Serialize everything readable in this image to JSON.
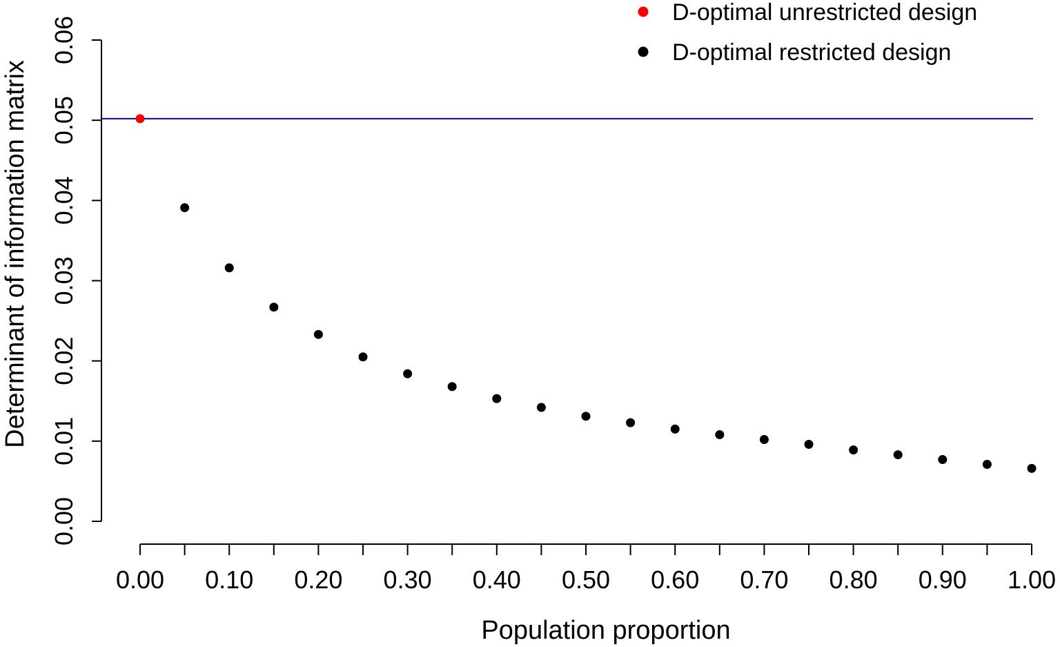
{
  "chart_data": {
    "type": "scatter",
    "xlabel": "Population proportion",
    "ylabel": "Determinant of information matrix",
    "xlim": [
      0,
      1
    ],
    "ylim": [
      0,
      0.06
    ],
    "x_ticks": [
      0,
      0.05,
      0.1,
      0.15,
      0.2,
      0.25,
      0.3,
      0.35,
      0.4,
      0.45,
      0.5,
      0.55,
      0.6,
      0.65,
      0.7,
      0.75,
      0.8,
      0.85,
      0.9,
      0.95,
      1.0
    ],
    "x_tick_labels": [
      "0.00",
      "0.10",
      "0.20",
      "0.30",
      "0.40",
      "0.50",
      "0.60",
      "0.70",
      "0.80",
      "0.90",
      "1.00"
    ],
    "x_tick_label_values": [
      0,
      0.1,
      0.2,
      0.3,
      0.4,
      0.5,
      0.6,
      0.7,
      0.8,
      0.9,
      1.0
    ],
    "y_ticks": [
      0,
      0.01,
      0.02,
      0.03,
      0.04,
      0.05,
      0.06
    ],
    "y_tick_labels": [
      "0.00",
      "0.01",
      "0.02",
      "0.03",
      "0.04",
      "0.05",
      "0.06"
    ],
    "grid": false,
    "legend_position": "top-right",
    "reference_line": {
      "y": 0.0502,
      "color": "#0000cc"
    },
    "series": [
      {
        "name": "D-optimal unrestricted design",
        "color": "#ff0000",
        "points": [
          [
            0,
            0.0502
          ]
        ]
      },
      {
        "name": "D-optimal restricted design",
        "color": "#000000",
        "points": [
          [
            0.05,
            0.0391
          ],
          [
            0.1,
            0.0316
          ],
          [
            0.15,
            0.0267
          ],
          [
            0.2,
            0.0233
          ],
          [
            0.25,
            0.0205
          ],
          [
            0.3,
            0.0184
          ],
          [
            0.35,
            0.0168
          ],
          [
            0.4,
            0.0153
          ],
          [
            0.45,
            0.0142
          ],
          [
            0.5,
            0.0131
          ],
          [
            0.55,
            0.0123
          ],
          [
            0.6,
            0.0115
          ],
          [
            0.65,
            0.0108
          ],
          [
            0.7,
            0.0102
          ],
          [
            0.75,
            0.0096
          ],
          [
            0.8,
            0.0089
          ],
          [
            0.85,
            0.0083
          ],
          [
            0.9,
            0.0077
          ],
          [
            0.95,
            0.0071
          ],
          [
            1.0,
            0.0066
          ]
        ]
      }
    ]
  }
}
